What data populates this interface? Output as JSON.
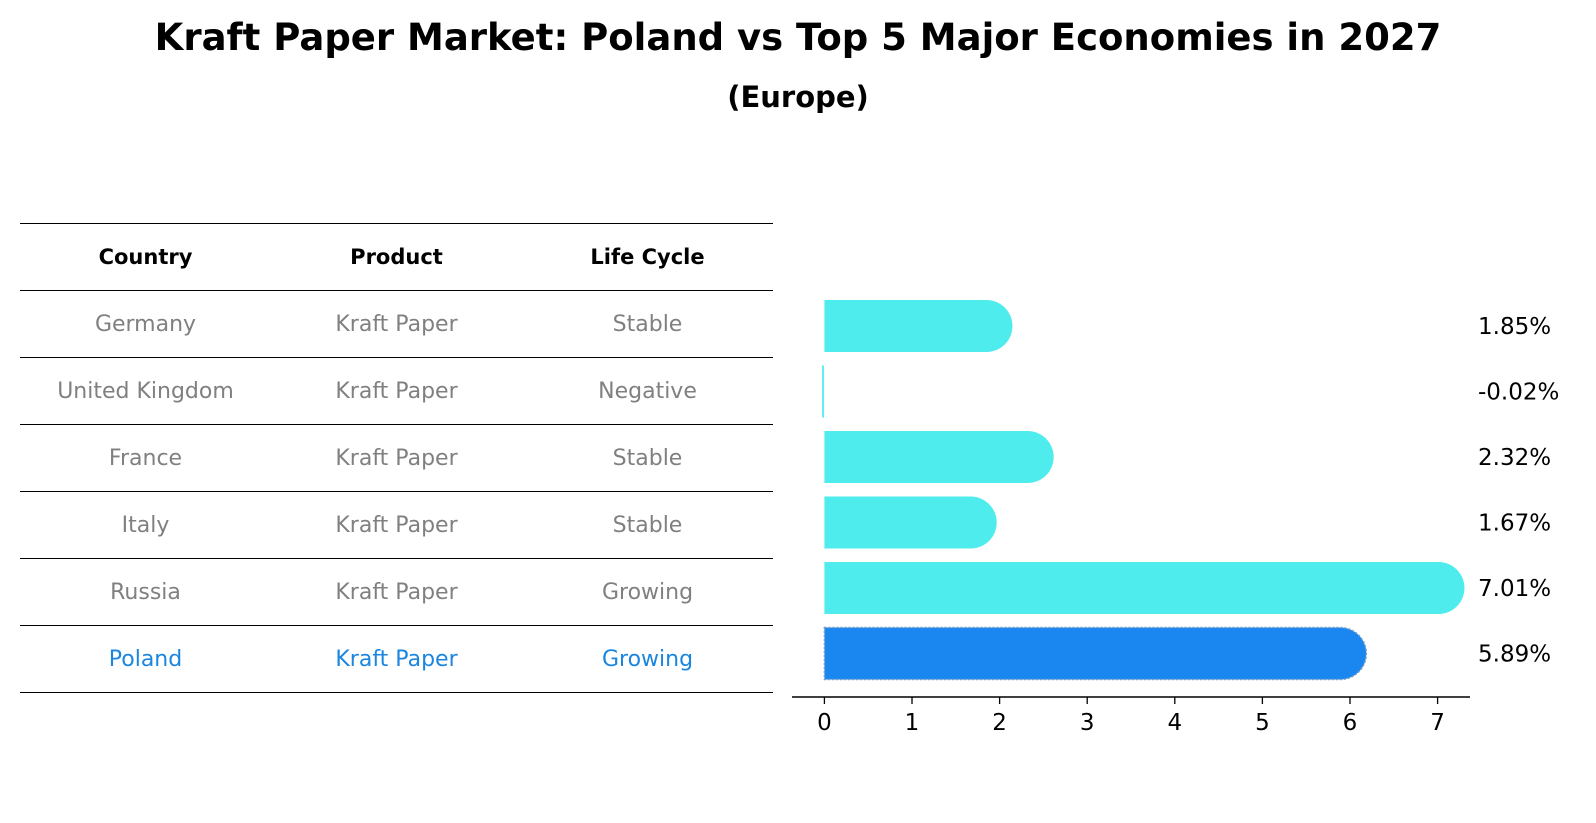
{
  "title": "Kraft Paper Market: Poland vs Top 5 Major Economies in 2027",
  "subtitle": "(Europe)",
  "table": {
    "headers": [
      "Country",
      "Product",
      "Life Cycle"
    ],
    "rows": [
      {
        "country": "Germany",
        "product": "Kraft Paper",
        "life_cycle": "Stable"
      },
      {
        "country": "United Kingdom",
        "product": "Kraft Paper",
        "life_cycle": "Negative"
      },
      {
        "country": "France",
        "product": "Kraft Paper",
        "life_cycle": "Stable"
      },
      {
        "country": "Italy",
        "product": "Kraft Paper",
        "life_cycle": "Stable"
      },
      {
        "country": "Russia",
        "product": "Kraft Paper",
        "life_cycle": "Growing"
      },
      {
        "country": "Poland",
        "product": "Kraft Paper",
        "life_cycle": "Growing"
      }
    ]
  },
  "colors": {
    "bar": "#4eecec",
    "highlight": "#1a86f0",
    "highlight_text": "#1a86e0",
    "muted_text": "#808080"
  },
  "chart_data": {
    "type": "bar",
    "orientation": "horizontal",
    "categories": [
      "Germany",
      "United Kingdom",
      "France",
      "Italy",
      "Russia",
      "Poland"
    ],
    "values": [
      1.85,
      -0.02,
      2.32,
      1.67,
      7.01,
      5.89
    ],
    "value_labels": [
      "1.85%",
      "-0.02%",
      "2.32%",
      "1.67%",
      "7.01%",
      "5.89%"
    ],
    "highlight": "Poland",
    "xlim": [
      -0.37,
      7.37
    ],
    "xticks": [
      0,
      1,
      2,
      3,
      4,
      5,
      6,
      7
    ],
    "xlabel": "",
    "ylabel": "",
    "grid": false
  }
}
